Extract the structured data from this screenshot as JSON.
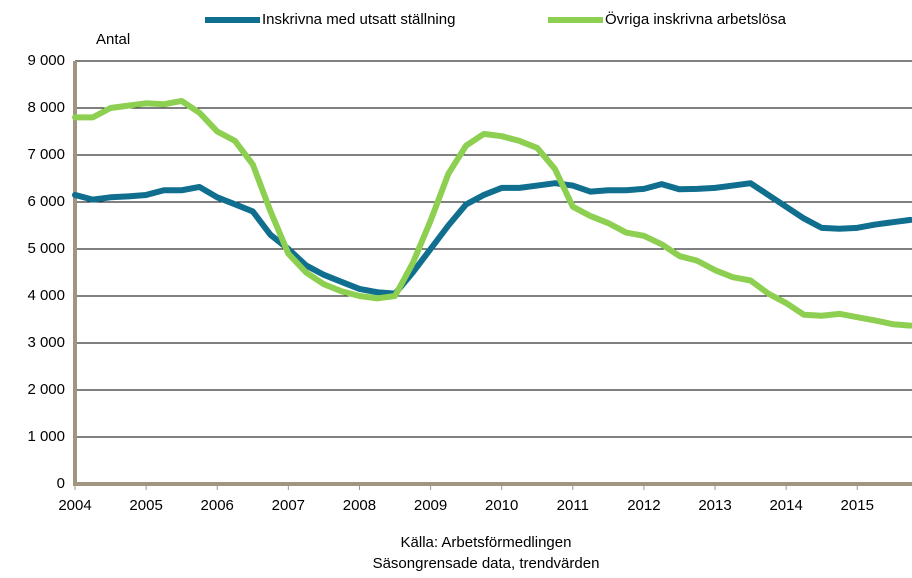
{
  "chart_data": {
    "type": "line",
    "y_label": "Antal",
    "notes": [
      "Källa: Arbetsförmedlingen",
      "Säsongrensade data, trendvärden"
    ],
    "x": [
      2004,
      2004.25,
      2004.5,
      2004.75,
      2005,
      2005.25,
      2005.5,
      2005.75,
      2006,
      2006.25,
      2006.5,
      2006.75,
      2007,
      2007.25,
      2007.5,
      2007.75,
      2008,
      2008.25,
      2008.5,
      2008.75,
      2009,
      2009.25,
      2009.5,
      2009.75,
      2010,
      2010.25,
      2010.5,
      2010.75,
      2011,
      2011.25,
      2011.5,
      2011.75,
      2012,
      2012.25,
      2012.5,
      2012.75,
      2013,
      2013.25,
      2013.5,
      2013.75,
      2014,
      2014.25,
      2014.5,
      2014.75,
      2015,
      2015.25,
      2015.5,
      2015.75
    ],
    "series": [
      {
        "name": "Inskrivna med utsatt ställning",
        "color": "#106e8f",
        "values": [
          6150,
          6050,
          6100,
          6120,
          6150,
          6250,
          6250,
          6320,
          6100,
          5950,
          5800,
          5300,
          5000,
          4650,
          4450,
          4300,
          4150,
          4080,
          4050,
          4500,
          5000,
          5500,
          5950,
          6150,
          6300,
          6300,
          6350,
          6400,
          6350,
          6220,
          6250,
          6250,
          6280,
          6380,
          6270,
          6280,
          6300,
          6350,
          6400,
          6150,
          5900,
          5650,
          5450,
          5430,
          5450,
          5520,
          5570,
          5620
        ]
      },
      {
        "name": "Övriga inskrivna arbetslösa",
        "color": "#8dcf50",
        "values": [
          7800,
          7800,
          8000,
          8050,
          8100,
          8080,
          8150,
          7900,
          7500,
          7300,
          6800,
          5800,
          4900,
          4500,
          4250,
          4100,
          4000,
          3950,
          4000,
          4700,
          5600,
          6600,
          7200,
          7450,
          7400,
          7300,
          7150,
          6700,
          5900,
          5700,
          5550,
          5350,
          5280,
          5100,
          4850,
          4750,
          4550,
          4400,
          4330,
          4050,
          3850,
          3600,
          3580,
          3620,
          3550,
          3480,
          3400,
          3370
        ]
      }
    ],
    "xlim": [
      2004,
      2015.77
    ],
    "xticks": [
      2004,
      2005,
      2006,
      2007,
      2008,
      2009,
      2010,
      2011,
      2012,
      2013,
      2014,
      2015
    ],
    "ylim": [
      0,
      9000
    ],
    "yticks": [
      0,
      {
        "value": 1000,
        "label": "1 000"
      },
      {
        "value": 2000,
        "label": "2 000"
      },
      {
        "value": 3000,
        "label": "3 000"
      },
      {
        "value": 4000,
        "label": "4 000"
      },
      {
        "value": 5000,
        "label": "5 000"
      },
      {
        "value": 6000,
        "label": "6 000"
      },
      {
        "value": 7000,
        "label": "7 000"
      },
      {
        "value": 8000,
        "label": "8 000"
      },
      {
        "value": 9000,
        "label": "9 000"
      }
    ],
    "grid": true,
    "legend": "top"
  }
}
